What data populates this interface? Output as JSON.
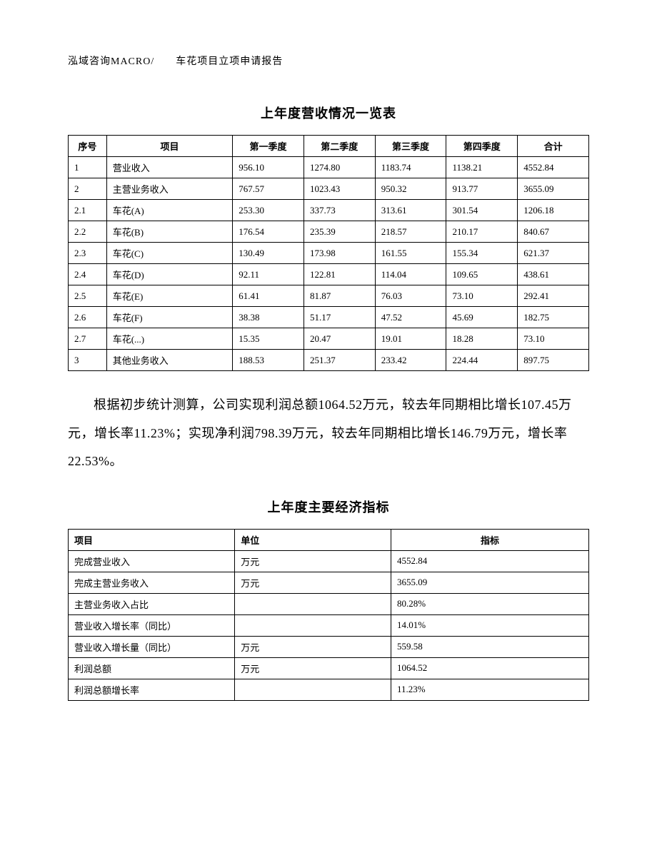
{
  "header": {
    "text": "泓域咨询MACRO/　　车花项目立项申请报告"
  },
  "table1": {
    "title": "上年度营收情况一览表",
    "columns": [
      "序号",
      "项目",
      "第一季度",
      "第二季度",
      "第三季度",
      "第四季度",
      "合计"
    ],
    "rows": [
      [
        "1",
        "营业收入",
        "956.10",
        "1274.80",
        "1183.74",
        "1138.21",
        "4552.84"
      ],
      [
        "2",
        "主营业务收入",
        "767.57",
        "1023.43",
        "950.32",
        "913.77",
        "3655.09"
      ],
      [
        "2.1",
        "车花(A)",
        "253.30",
        "337.73",
        "313.61",
        "301.54",
        "1206.18"
      ],
      [
        "2.2",
        "车花(B)",
        "176.54",
        "235.39",
        "218.57",
        "210.17",
        "840.67"
      ],
      [
        "2.3",
        "车花(C)",
        "130.49",
        "173.98",
        "161.55",
        "155.34",
        "621.37"
      ],
      [
        "2.4",
        "车花(D)",
        "92.11",
        "122.81",
        "114.04",
        "109.65",
        "438.61"
      ],
      [
        "2.5",
        "车花(E)",
        "61.41",
        "81.87",
        "76.03",
        "73.10",
        "292.41"
      ],
      [
        "2.6",
        "车花(F)",
        "38.38",
        "51.17",
        "47.52",
        "45.69",
        "182.75"
      ],
      [
        "2.7",
        "车花(...)",
        "15.35",
        "20.47",
        "19.01",
        "18.28",
        "73.10"
      ],
      [
        "3",
        "其他业务收入",
        "188.53",
        "251.37",
        "233.42",
        "224.44",
        "897.75"
      ]
    ]
  },
  "paragraph": {
    "text": "根据初步统计测算，公司实现利润总额1064.52万元，较去年同期相比增长107.45万元，增长率11.23%；实现净利润798.39万元，较去年同期相比增长146.79万元，增长率22.53%。"
  },
  "table2": {
    "title": "上年度主要经济指标",
    "columns": [
      "项目",
      "单位",
      "指标"
    ],
    "rows": [
      [
        "完成营业收入",
        "万元",
        "4552.84"
      ],
      [
        "完成主营业务收入",
        "万元",
        "3655.09"
      ],
      [
        "主营业务收入占比",
        "",
        "80.28%"
      ],
      [
        "营业收入增长率（同比）",
        "",
        "14.01%"
      ],
      [
        "营业收入增长量（同比）",
        "万元",
        "559.58"
      ],
      [
        "利润总额",
        "万元",
        "1064.52"
      ],
      [
        "利润总额增长率",
        "",
        "11.23%"
      ]
    ]
  }
}
